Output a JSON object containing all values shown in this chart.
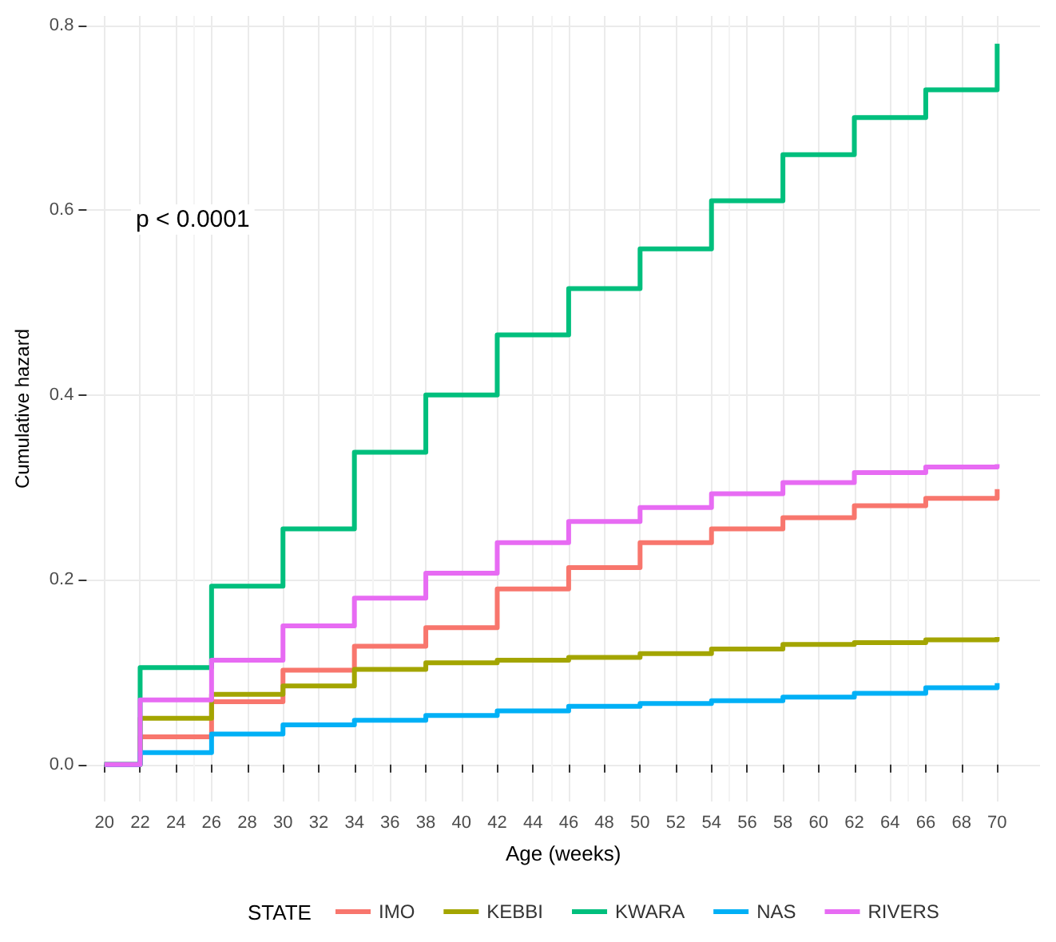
{
  "chart_data": {
    "type": "step",
    "xlabel": "Age (weeks)",
    "ylabel": "Cumulative hazard",
    "legend_title": "STATE",
    "legend": "bottom",
    "grid": true,
    "x": [
      20,
      22,
      26,
      30,
      34,
      38,
      42,
      46,
      50,
      54,
      58,
      62,
      66,
      70
    ],
    "xlim": [
      19,
      72.4
    ],
    "xticks": [
      20,
      22,
      24,
      26,
      28,
      30,
      32,
      34,
      36,
      38,
      40,
      42,
      44,
      46,
      48,
      50,
      52,
      54,
      56,
      58,
      60,
      62,
      64,
      66,
      68,
      70
    ],
    "ylim": [
      -0.04,
      0.81
    ],
    "yticks": [
      {
        "value": 0,
        "label": "0.0"
      },
      {
        "value": 0.2,
        "label": "0.2"
      },
      {
        "value": 0.4,
        "label": "0.4"
      },
      {
        "value": 0.6,
        "label": "0.6"
      },
      {
        "value": 0.8,
        "label": "0.8"
      }
    ],
    "annotations": [
      "p < 0.0001"
    ],
    "series": [
      {
        "name": "IMO",
        "color": "#f8766d",
        "values": [
          0,
          0.03,
          0.068,
          0.102,
          0.128,
          0.148,
          0.19,
          0.213,
          0.24,
          0.255,
          0.267,
          0.28,
          0.288,
          0.298
        ]
      },
      {
        "name": "KEBBI",
        "color": "#a3a500",
        "values": [
          0,
          0.05,
          0.076,
          0.085,
          0.103,
          0.11,
          0.113,
          0.116,
          0.12,
          0.125,
          0.13,
          0.132,
          0.135,
          0.138
        ]
      },
      {
        "name": "KWARA",
        "color": "#00bf7d",
        "values": [
          0,
          0.105,
          0.193,
          0.255,
          0.338,
          0.4,
          0.465,
          0.515,
          0.558,
          0.61,
          0.66,
          0.7,
          0.73,
          0.78
        ]
      },
      {
        "name": "NAS",
        "color": "#00b0f6",
        "values": [
          0,
          0.013,
          0.033,
          0.043,
          0.048,
          0.053,
          0.058,
          0.063,
          0.066,
          0.069,
          0.073,
          0.077,
          0.083,
          0.088
        ]
      },
      {
        "name": "RIVERS",
        "color": "#e76bf3",
        "values": [
          0,
          0.07,
          0.113,
          0.15,
          0.18,
          0.207,
          0.24,
          0.263,
          0.278,
          0.293,
          0.305,
          0.316,
          0.322,
          0.325
        ]
      }
    ]
  }
}
